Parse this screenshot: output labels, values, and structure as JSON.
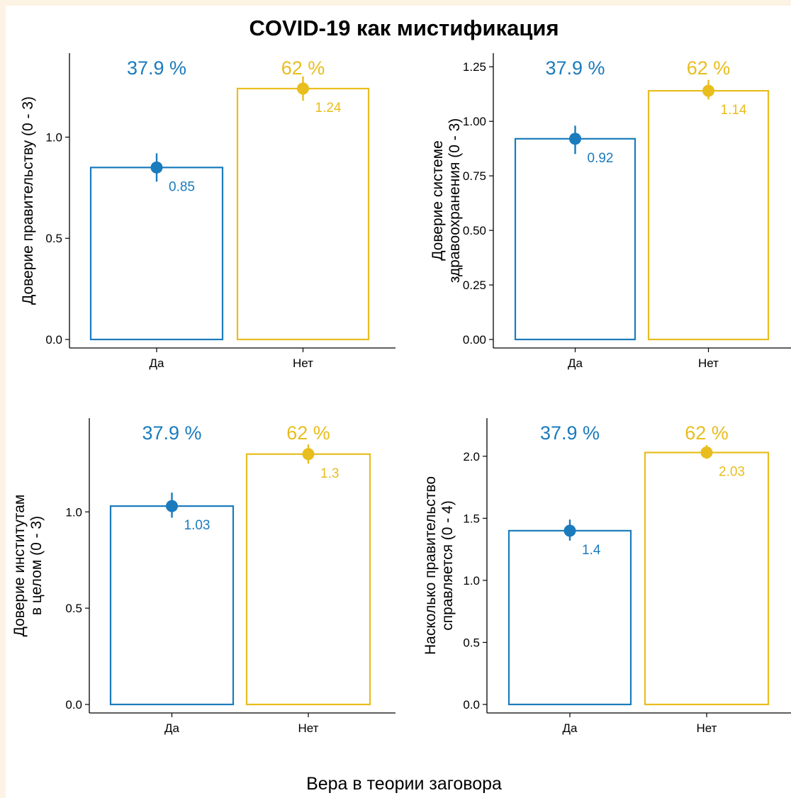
{
  "figure": {
    "title": "COVID-19 как мистификация",
    "x_axis_label": "Вера в теории заговора"
  },
  "colors": {
    "yes": "#1a7bbd",
    "no": "#e8bd1e"
  },
  "chart_data": [
    {
      "type": "bar",
      "categories": [
        "Да",
        "Нет"
      ],
      "values": [
        0.85,
        1.24
      ],
      "value_labels": [
        "0.85",
        "1.24"
      ],
      "percent_labels": [
        "37.9 %",
        "62 %"
      ],
      "error": [
        [
          0.78,
          0.92
        ],
        [
          1.18,
          1.3
        ]
      ],
      "ylabel": [
        "Доверие правительству (0 - 3)"
      ],
      "ylim": [
        0,
        1.38
      ],
      "yticks": [
        0.0,
        0.5,
        1.0
      ],
      "ytick_labels": [
        "0.0",
        "0.5",
        "1.0"
      ]
    },
    {
      "type": "bar",
      "categories": [
        "Да",
        "Нет"
      ],
      "values": [
        0.92,
        1.14
      ],
      "value_labels": [
        "0.92",
        "1.14"
      ],
      "percent_labels": [
        "37.9 %",
        "62 %"
      ],
      "error": [
        [
          0.85,
          0.98
        ],
        [
          1.1,
          1.19
        ]
      ],
      "ylabel": [
        "Доверие системе",
        "здравоохранения (0 - 3)"
      ],
      "ylim": [
        0,
        1.28
      ],
      "yticks": [
        0.0,
        0.25,
        0.5,
        0.75,
        1.0,
        1.25
      ],
      "ytick_labels": [
        "0.00",
        "0.25",
        "0.50",
        "0.75",
        "1.00",
        "1.25"
      ]
    },
    {
      "type": "bar",
      "categories": [
        "Да",
        "Нет"
      ],
      "values": [
        1.03,
        1.3
      ],
      "value_labels": [
        "1.03",
        "1.3"
      ],
      "percent_labels": [
        "37.9 %",
        "62 %"
      ],
      "error": [
        [
          0.97,
          1.1
        ],
        [
          1.25,
          1.35
        ]
      ],
      "ylabel": [
        "Доверие институтам",
        "в целом (0 - 3)"
      ],
      "ylim": [
        0,
        1.45
      ],
      "yticks": [
        0.0,
        0.5,
        1.0
      ],
      "ytick_labels": [
        "0.0",
        "0.5",
        "1.0"
      ]
    },
    {
      "type": "bar",
      "categories": [
        "Да",
        "Нет"
      ],
      "values": [
        1.4,
        2.03
      ],
      "value_labels": [
        "1.4",
        "2.03"
      ],
      "percent_labels": [
        "37.9 %",
        "62 %"
      ],
      "error": [
        [
          1.32,
          1.49
        ],
        [
          1.98,
          2.09
        ]
      ],
      "ylabel": [
        "Насколько правительство",
        "справляется (0 - 4)"
      ],
      "ylim": [
        0,
        2.25
      ],
      "yticks": [
        0.0,
        0.5,
        1.0,
        1.5,
        2.0
      ],
      "ytick_labels": [
        "0.0",
        "0.5",
        "1.0",
        "1.5",
        "2.0"
      ]
    }
  ]
}
